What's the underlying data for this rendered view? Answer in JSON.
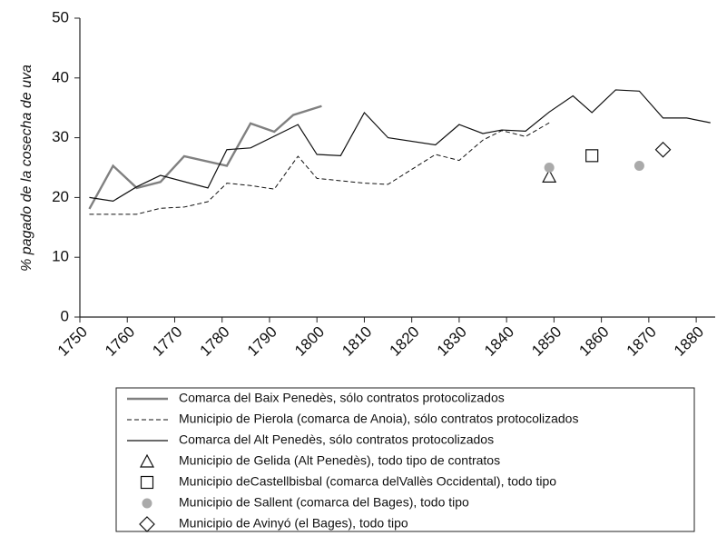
{
  "chart_data": {
    "type": "line",
    "y_label": "% pagado de la cosecha de uva",
    "xlim": [
      1750,
      1884
    ],
    "xticks": [
      1750,
      1760,
      1770,
      1780,
      1790,
      1800,
      1810,
      1820,
      1830,
      1840,
      1850,
      1860,
      1870,
      1880
    ],
    "ylim": [
      0,
      50
    ],
    "yticks": [
      0,
      10,
      20,
      30,
      40,
      50
    ],
    "series": [
      {
        "name": "Comarca del Baix Penedès, sólo contratos protocolizados",
        "color": "#808080",
        "line": "thick",
        "marker": "none",
        "x": [
          1752,
          1757,
          1762,
          1767,
          1772,
          1781,
          1786,
          1791,
          1795,
          1801
        ],
        "values": [
          18.1,
          25.3,
          21.6,
          22.6,
          26.9,
          25.3,
          32.4,
          31,
          33.8,
          35.3
        ]
      },
      {
        "name": "Municipio de Pierola (comarca de Anoia), sólo contratos protocolizados",
        "color": "#111111",
        "line": "dashed",
        "marker": "none",
        "x": [
          1752,
          1757,
          1762,
          1767,
          1772,
          1777,
          1781,
          1786,
          1791,
          1796,
          1800,
          1805,
          1810,
          1815,
          1825,
          1830,
          1835,
          1839,
          1844,
          1849
        ],
        "values": [
          17.2,
          17.2,
          17.2,
          18.2,
          18.4,
          19.3,
          22.4,
          22,
          21.4,
          26.9,
          23.2,
          22.8,
          22.4,
          22.2,
          27.2,
          26.2,
          29.6,
          31.2,
          30.2,
          32.5
        ]
      },
      {
        "name": "Comarca del Alt Penedès, sólo contratos protocolizados",
        "color": "#111111",
        "line": "solid",
        "marker": "none",
        "x": [
          1752,
          1757,
          1762,
          1767,
          1777,
          1781,
          1786,
          1796,
          1800,
          1805,
          1810,
          1815,
          1825,
          1830,
          1835,
          1839,
          1844,
          1849,
          1854,
          1858,
          1863,
          1868,
          1873,
          1878,
          1883
        ],
        "values": [
          20,
          19.4,
          21.8,
          23.7,
          21.6,
          28,
          28.3,
          32.2,
          27.2,
          27,
          34.2,
          30,
          28.8,
          32.2,
          30.7,
          31.3,
          31.1,
          34.3,
          37,
          34.2,
          38,
          37.8,
          33.3,
          33.3,
          32.5
        ]
      },
      {
        "name": "Municipio de Gelida (Alt Penedès), todo tipo de contratos",
        "color": "#111111",
        "line": "none",
        "marker": "triangle",
        "x": [
          1849
        ],
        "values": [
          23.5
        ]
      },
      {
        "name": "Municipio deCastellbisbal (comarca delVallès Occidental), todo tipo",
        "color": "#111111",
        "line": "none",
        "marker": "square",
        "x": [
          1858
        ],
        "values": [
          27
        ]
      },
      {
        "name": "Municipio de Sallent (comarca del Bages), todo tipo",
        "color": "#aaaaaa",
        "line": "none",
        "marker": "circle",
        "x": [
          1849,
          1868
        ],
        "values": [
          25,
          25.3
        ]
      },
      {
        "name": "Municipio de Avinyó (el Bages), todo tipo",
        "color": "#111111",
        "line": "none",
        "marker": "diamond",
        "x": [
          1873
        ],
        "values": [
          28
        ]
      }
    ]
  }
}
